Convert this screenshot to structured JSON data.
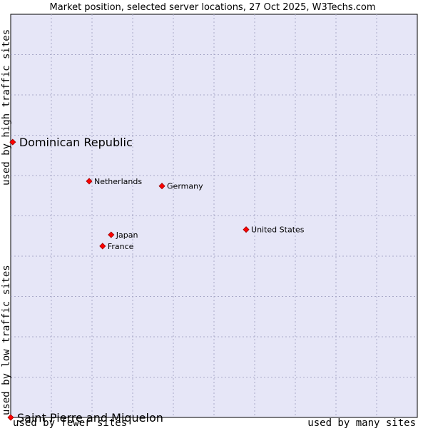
{
  "chart_data": {
    "type": "scatter",
    "title": "Market position, selected server locations, 27 Oct 2025, W3Techs.com",
    "xlabel_low": "used by fewer sites",
    "xlabel_high": "used by many sites",
    "ylabel_low": "used by low traffic sites",
    "ylabel_high": "used by high traffic sites",
    "xlim": [
      0,
      10
    ],
    "ylim": [
      0,
      10
    ],
    "grid": true,
    "colors": {
      "plot_bg": "#e6e6f7",
      "grid": "#a9a9c8",
      "marker": "#ff0000",
      "marker_edge": "#990000"
    },
    "points": [
      {
        "name": "Dominican Republic",
        "x": 0.05,
        "y": 6.83,
        "emphasis": true
      },
      {
        "name": "Saint Pierre and Miquelon",
        "x": 0.0,
        "y": 0.0,
        "emphasis": true
      },
      {
        "name": "Netherlands",
        "x": 1.93,
        "y": 5.86,
        "emphasis": false
      },
      {
        "name": "Germany",
        "x": 3.72,
        "y": 5.74,
        "emphasis": false
      },
      {
        "name": "United States",
        "x": 5.79,
        "y": 4.66,
        "emphasis": false
      },
      {
        "name": "Japan",
        "x": 2.47,
        "y": 4.53,
        "emphasis": false
      },
      {
        "name": "France",
        "x": 2.26,
        "y": 4.25,
        "emphasis": false
      }
    ]
  }
}
